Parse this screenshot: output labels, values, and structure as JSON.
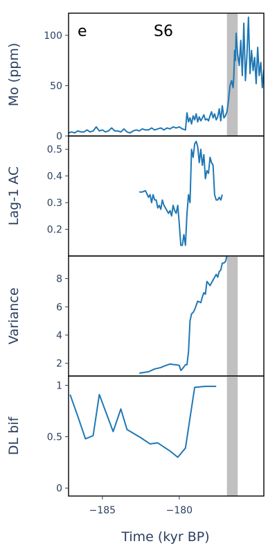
{
  "figure": {
    "panel_letter": "e",
    "site_label": "S6",
    "x_axis_title": "Time (kyr BP)"
  },
  "colors": {
    "line": "#1f77b4",
    "shade": "#c0c0c0",
    "text": "#2a3f5f"
  },
  "chart_data": [
    {
      "type": "line",
      "name": "mo",
      "ylabel": "Mo (ppm)",
      "xlim": [
        -187.2,
        -174.5
      ],
      "ylim": [
        0,
        122
      ],
      "yticks": [
        0,
        50,
        100
      ],
      "shade_x": [
        -176.9,
        -176.2
      ],
      "series": [
        {
          "name": "Mo (ppm)",
          "x": [
            -187.2,
            -187.0,
            -186.8,
            -186.6,
            -186.4,
            -186.2,
            -186.0,
            -185.8,
            -185.6,
            -185.4,
            -185.2,
            -185.0,
            -184.8,
            -184.6,
            -184.4,
            -184.2,
            -184.0,
            -183.8,
            -183.6,
            -183.4,
            -183.2,
            -183.0,
            -182.8,
            -182.6,
            -182.4,
            -182.2,
            -182.0,
            -181.8,
            -181.6,
            -181.4,
            -181.2,
            -181.0,
            -180.8,
            -180.6,
            -180.4,
            -180.2,
            -180.0,
            -179.8,
            -179.6,
            -179.5,
            -179.4,
            -179.3,
            -179.2,
            -179.1,
            -179.0,
            -178.9,
            -178.8,
            -178.7,
            -178.6,
            -178.5,
            -178.4,
            -178.3,
            -178.2,
            -178.1,
            -178.0,
            -177.9,
            -177.8,
            -177.7,
            -177.6,
            -177.5,
            -177.4,
            -177.3,
            -177.2,
            -177.1,
            -177.0,
            -176.95,
            -176.9,
            -176.8,
            -176.7,
            -176.6,
            -176.5,
            -176.45,
            -176.4,
            -176.35,
            -176.3,
            -176.2,
            -176.1,
            -176.0,
            -175.9,
            -175.8,
            -175.7,
            -175.6,
            -175.5,
            -175.4,
            -175.3,
            -175.2,
            -175.1,
            -175.0,
            -174.9,
            -174.8,
            -174.7,
            -174.6,
            -174.5
          ],
          "y": [
            3,
            4,
            3,
            5,
            4,
            4,
            6,
            4,
            5,
            9,
            5,
            6,
            4,
            5,
            8,
            5,
            5,
            4,
            7,
            4,
            3,
            5,
            6,
            5,
            7,
            6,
            6,
            8,
            6,
            7,
            8,
            6,
            8,
            7,
            9,
            8,
            9,
            7,
            6,
            23,
            14,
            18,
            12,
            20,
            16,
            22,
            14,
            19,
            15,
            18,
            21,
            16,
            17,
            15,
            20,
            24,
            18,
            22,
            16,
            19,
            27,
            15,
            30,
            18,
            20,
            22,
            24,
            35,
            50,
            55,
            48,
            60,
            85,
            75,
            102,
            80,
            70,
            95,
            60,
            112,
            55,
            80,
            118,
            62,
            85,
            65,
            78,
            52,
            88,
            60,
            73,
            48,
            66
          ]
        }
      ]
    },
    {
      "type": "line",
      "name": "lag1",
      "ylabel": "Lag-1 AC",
      "xlim": [
        -187.2,
        -174.5
      ],
      "ylim": [
        0.1,
        0.55
      ],
      "yticks": [
        0.2,
        0.3,
        0.4,
        0.5
      ],
      "yticklabels": [
        "0.2",
        "0.3",
        "0.4",
        "0.5"
      ],
      "series": [
        {
          "name": "Lag-1 AC",
          "x": [
            -182.6,
            -182.4,
            -182.2,
            -182.0,
            -181.9,
            -181.8,
            -181.7,
            -181.6,
            -181.5,
            -181.4,
            -181.3,
            -181.2,
            -181.1,
            -181.0,
            -180.9,
            -180.8,
            -180.7,
            -180.6,
            -180.5,
            -180.4,
            -180.3,
            -180.2,
            -180.1,
            -180.0,
            -179.9,
            -179.8,
            -179.7,
            -179.6,
            -179.5,
            -179.4,
            -179.3,
            -179.2,
            -179.1,
            -179.0,
            -178.9,
            -178.8,
            -178.7,
            -178.6,
            -178.5,
            -178.4,
            -178.3,
            -178.2,
            -178.1,
            -178.0,
            -177.9,
            -177.8,
            -177.7,
            -177.6,
            -177.5,
            -177.4,
            -177.3,
            -177.2
          ],
          "y": [
            0.34,
            0.34,
            0.345,
            0.32,
            0.33,
            0.3,
            0.33,
            0.31,
            0.31,
            0.28,
            0.29,
            0.275,
            0.31,
            0.29,
            0.28,
            0.27,
            0.26,
            0.27,
            0.25,
            0.29,
            0.27,
            0.26,
            0.29,
            0.22,
            0.14,
            0.14,
            0.18,
            0.14,
            0.26,
            0.33,
            0.3,
            0.5,
            0.47,
            0.52,
            0.53,
            0.51,
            0.45,
            0.5,
            0.44,
            0.48,
            0.39,
            0.42,
            0.41,
            0.47,
            0.45,
            0.44,
            0.33,
            0.31,
            0.31,
            0.32,
            0.31,
            0.33
          ]
        }
      ]
    },
    {
      "type": "line",
      "name": "variance",
      "ylabel": "Variance",
      "xlim": [
        -187.2,
        -174.5
      ],
      "ylim": [
        1.1,
        9.6
      ],
      "yticks": [
        2,
        4,
        6,
        8
      ],
      "shade_x": [
        -176.9,
        -176.2
      ],
      "series": [
        {
          "name": "Variance",
          "x": [
            -182.6,
            -182.0,
            -181.6,
            -181.4,
            -181.2,
            -181.0,
            -180.6,
            -180.3,
            -180.2,
            -180.0,
            -179.9,
            -179.8,
            -179.6,
            -179.5,
            -179.4,
            -179.3,
            -179.2,
            -179.1,
            -179.0,
            -178.8,
            -178.6,
            -178.5,
            -178.4,
            -178.3,
            -178.2,
            -178.0,
            -177.8,
            -177.6,
            -177.5,
            -177.4,
            -177.3,
            -177.2,
            -177.1,
            -177.0,
            -176.9
          ],
          "y": [
            1.3,
            1.4,
            1.6,
            1.65,
            1.7,
            1.8,
            1.95,
            1.9,
            1.9,
            1.85,
            1.5,
            1.6,
            1.9,
            1.9,
            2.8,
            5.0,
            5.5,
            5.6,
            5.8,
            6.4,
            6.3,
            6.7,
            7.0,
            6.9,
            7.8,
            7.5,
            7.9,
            8.3,
            8.1,
            8.5,
            8.6,
            9.1,
            9.1,
            9.2,
            9.6
          ]
        }
      ]
    },
    {
      "type": "line",
      "name": "dl_bif",
      "ylabel": "DL bif",
      "xlabel": "Time (kyr BP)",
      "xlim": [
        -187.2,
        -174.5
      ],
      "ylim": [
        -0.05,
        1.05
      ],
      "yticks": [
        0,
        0.5,
        1
      ],
      "yticklabels": [
        "0",
        "0.5",
        "1"
      ],
      "xticks": [
        -185,
        -180
      ],
      "xticklabels": [
        "−185",
        "−180"
      ],
      "shade_x": [
        -176.9,
        -176.2
      ],
      "series": [
        {
          "name": "DL bif",
          "x": [
            -187.1,
            -186.6,
            -186.1,
            -185.6,
            -185.2,
            -184.3,
            -183.8,
            -183.4,
            -182.5,
            -181.9,
            -181.4,
            -180.6,
            -180.1,
            -179.6,
            -179.0,
            -178.3,
            -177.6
          ],
          "y": [
            0.91,
            0.7,
            0.48,
            0.51,
            0.91,
            0.55,
            0.77,
            0.57,
            0.49,
            0.43,
            0.44,
            0.36,
            0.3,
            0.39,
            0.98,
            0.99,
            0.99
          ]
        }
      ]
    }
  ]
}
